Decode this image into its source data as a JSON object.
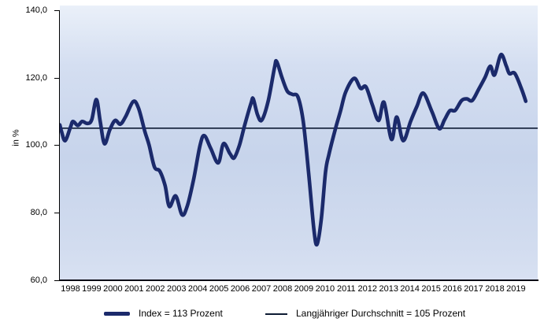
{
  "chart": {
    "y_axis_title": "in %",
    "y_tick_labels": [
      "140,0",
      "120,0",
      "100,0",
      "80,0",
      "60,0"
    ],
    "y_tick_values": [
      140,
      120,
      100,
      80,
      60
    ],
    "x_year_labels": [
      "1998",
      "1999",
      "2000",
      "2001",
      "2002",
      "2003",
      "2004",
      "2005",
      "2006",
      "2007",
      "2008",
      "2009",
      "2010",
      "2011",
      "2012",
      "2013",
      "2014",
      "2015",
      "2016",
      "2017",
      "2018",
      "2019"
    ]
  },
  "legend": {
    "index_label": "Index = 113 Prozent",
    "average_label": "Langjähriger Durchschnitt = 105 Prozent"
  },
  "colors": {
    "index_line": "#1b2a6b",
    "average_line": "#0d1b33",
    "axis": "#000000"
  },
  "chart_data": {
    "type": "line",
    "title": "",
    "xlabel": "",
    "ylabel": "in %",
    "ylim": [
      60,
      140
    ],
    "xlim": [
      1998,
      2020
    ],
    "grid": false,
    "legend_position": "bottom",
    "average_line_value": 105,
    "current_index_value": 113,
    "series": [
      {
        "name": "Index = 113 Prozent",
        "style": "thick",
        "points": [
          [
            1998.0,
            106
          ],
          [
            1998.08,
            104
          ],
          [
            1998.25,
            101.3
          ],
          [
            1998.5,
            105.3
          ],
          [
            1998.62,
            107
          ],
          [
            1998.85,
            105.8
          ],
          [
            1999.05,
            107
          ],
          [
            1999.3,
            106.4
          ],
          [
            1999.5,
            107.5
          ],
          [
            1999.72,
            113.5
          ],
          [
            1999.9,
            107
          ],
          [
            2000.1,
            100.4
          ],
          [
            2000.35,
            104.5
          ],
          [
            2000.6,
            107.3
          ],
          [
            2000.85,
            106.2
          ],
          [
            2001.1,
            108.5
          ],
          [
            2001.45,
            112.9
          ],
          [
            2001.7,
            111
          ],
          [
            2002.0,
            104
          ],
          [
            2002.2,
            100
          ],
          [
            2002.45,
            93.5
          ],
          [
            2002.7,
            92.3
          ],
          [
            2002.95,
            88
          ],
          [
            2003.15,
            81.8
          ],
          [
            2003.45,
            84.9
          ],
          [
            2003.75,
            79.3
          ],
          [
            2004.0,
            82
          ],
          [
            2004.3,
            90
          ],
          [
            2004.6,
            100
          ],
          [
            2004.8,
            102.8
          ],
          [
            2005.1,
            99
          ],
          [
            2005.45,
            94.7
          ],
          [
            2005.7,
            100.4
          ],
          [
            2006.0,
            97.5
          ],
          [
            2006.2,
            96.2
          ],
          [
            2006.45,
            100
          ],
          [
            2006.7,
            106
          ],
          [
            2007.0,
            112.5
          ],
          [
            2007.1,
            113.7
          ],
          [
            2007.3,
            109
          ],
          [
            2007.5,
            107.4
          ],
          [
            2007.8,
            113
          ],
          [
            2008.1,
            123
          ],
          [
            2008.2,
            124.8
          ],
          [
            2008.45,
            120
          ],
          [
            2008.7,
            116
          ],
          [
            2008.95,
            115
          ],
          [
            2009.2,
            114.3
          ],
          [
            2009.45,
            107
          ],
          [
            2009.7,
            92
          ],
          [
            2009.95,
            75
          ],
          [
            2010.1,
            70.5
          ],
          [
            2010.3,
            78
          ],
          [
            2010.5,
            92
          ],
          [
            2010.65,
            97
          ],
          [
            2010.95,
            104.5
          ],
          [
            2011.2,
            110
          ],
          [
            2011.45,
            115.8
          ],
          [
            2011.85,
            119.8
          ],
          [
            2012.15,
            116.8
          ],
          [
            2012.4,
            117.3
          ],
          [
            2012.7,
            112
          ],
          [
            2013.0,
            107.3
          ],
          [
            2013.25,
            112.7
          ],
          [
            2013.6,
            101.7
          ],
          [
            2013.85,
            108.3
          ],
          [
            2014.15,
            101.3
          ],
          [
            2014.5,
            107
          ],
          [
            2014.8,
            111.5
          ],
          [
            2015.1,
            115.4
          ],
          [
            2015.5,
            110
          ],
          [
            2015.85,
            104.9
          ],
          [
            2016.1,
            107.5
          ],
          [
            2016.35,
            110.2
          ],
          [
            2016.6,
            110.3
          ],
          [
            2016.9,
            113.2
          ],
          [
            2017.15,
            113.7
          ],
          [
            2017.4,
            113.2
          ],
          [
            2017.7,
            116.5
          ],
          [
            2018.0,
            120
          ],
          [
            2018.25,
            123.4
          ],
          [
            2018.45,
            120.8
          ],
          [
            2018.75,
            126.8
          ],
          [
            2019.0,
            123.5
          ],
          [
            2019.15,
            121.2
          ],
          [
            2019.4,
            121.3
          ],
          [
            2019.7,
            117
          ],
          [
            2019.92,
            113
          ]
        ]
      },
      {
        "name": "Langjähriger Durchschnitt = 105 Prozent",
        "style": "thin",
        "constant": 105
      }
    ]
  }
}
